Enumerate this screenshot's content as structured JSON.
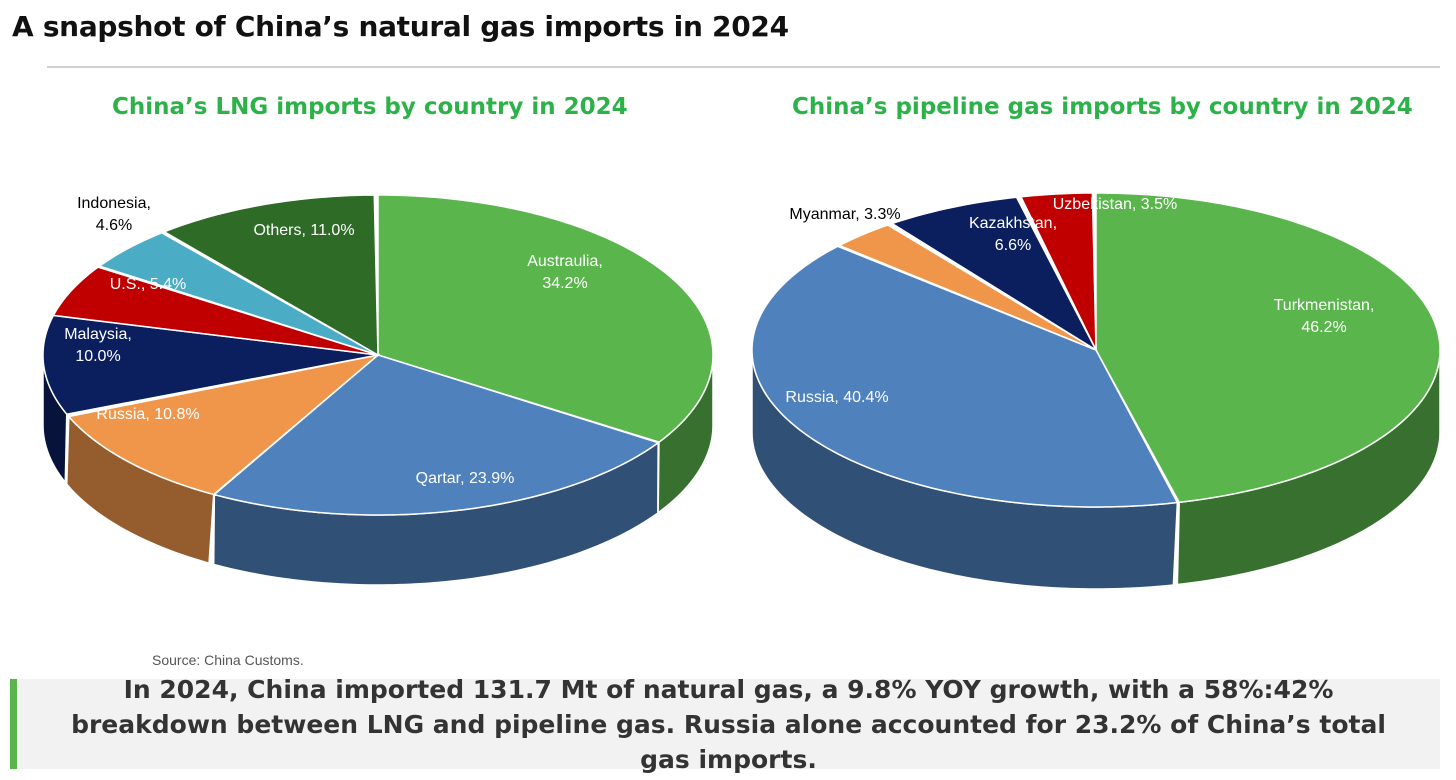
{
  "title": "A snapshot of China’s natural gas imports in 2024",
  "source": "Source: China Customs.",
  "summary": "In 2024, China imported 131.7 Mt of natural gas, a 9.8% YOY growth, with a  58%:42% breakdown between LNG and pipeline gas. Russia alone accounted for 23.2% of China’s total gas imports.",
  "chart_data": [
    {
      "type": "pie",
      "title": "China’s LNG imports by country in 2024",
      "unit": "%",
      "slices": [
        {
          "label": "Austraulia",
          "value": 34.2,
          "text": "Austraulia,|34.2%",
          "color": "#5ab64c"
        },
        {
          "label": "Qartar",
          "value": 23.9,
          "text": "Qartar, 23.9%",
          "color": "#4f81bd"
        },
        {
          "label": "Russia",
          "value": 10.8,
          "text": "Russia, 10.8%",
          "color": "#f0964a"
        },
        {
          "label": "Malaysia",
          "value": 10.0,
          "text": "Malaysia,|10.0%",
          "color": "#0b1f5e"
        },
        {
          "label": "U.S.",
          "value": 5.4,
          "text": "U.S., 5.4%",
          "color": "#c00000"
        },
        {
          "label": "Indonesia",
          "value": 4.6,
          "text": "Indonesia,|4.6%",
          "color": "#4bacc6"
        },
        {
          "label": "Others",
          "value": 11.0,
          "text": "Others, 11.0%",
          "color": "#2e6b26"
        }
      ]
    },
    {
      "type": "pie",
      "title": "China’s pipeline gas imports by country in 2024",
      "unit": "%",
      "slices": [
        {
          "label": "Turkmenistan",
          "value": 46.2,
          "text": "Turkmenistan,|46.2%",
          "color": "#5ab64c"
        },
        {
          "label": "Russia",
          "value": 40.4,
          "text": "Russia, 40.4%",
          "color": "#4f81bd"
        },
        {
          "label": "Myanmar",
          "value": 3.3,
          "text": "Myanmar, 3.3%",
          "color": "#f0964a"
        },
        {
          "label": "Kazakhstan",
          "value": 6.6,
          "text": "Kazakhstan,|6.6%",
          "color": "#0b1f5e"
        },
        {
          "label": "Uzbekistan",
          "value": 3.5,
          "text": "Uzbekistan, 3.5%",
          "color": "#c00000"
        }
      ]
    }
  ]
}
